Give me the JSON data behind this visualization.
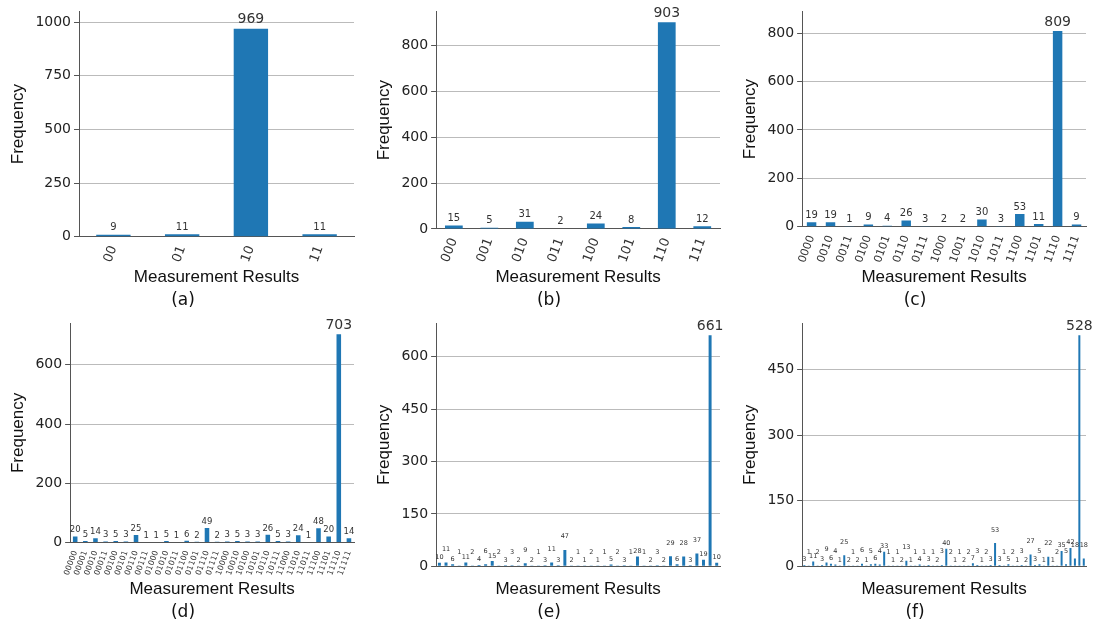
{
  "chart_data": [
    {
      "type": "bar",
      "xlabel": "Measurement Results",
      "ylabel": "Frequency",
      "annotations": [
        "(a)"
      ],
      "categories": [
        "00",
        "01",
        "10",
        "11"
      ],
      "values": [
        9,
        11,
        969,
        11
      ],
      "color": "#1f77b4",
      "ylim": [
        0,
        1050
      ],
      "yticks": [
        0,
        250,
        500,
        750,
        1000
      ],
      "grid": "y",
      "data_labels": true
    },
    {
      "type": "bar",
      "xlabel": "Measurement Results",
      "ylabel": "Frequency",
      "annotations": [
        "(b)"
      ],
      "categories": [
        "000",
        "001",
        "010",
        "011",
        "100",
        "101",
        "110",
        "111"
      ],
      "values": [
        15,
        5,
        31,
        2,
        24,
        8,
        903,
        12
      ],
      "color": "#1f77b4",
      "ylim": [
        0,
        950
      ],
      "yticks": [
        0,
        200,
        400,
        600,
        800
      ],
      "grid": "y",
      "data_labels": true
    },
    {
      "type": "bar",
      "xlabel": "Measurement Results",
      "ylabel": "Frequency",
      "annotations": [
        "(c)"
      ],
      "categories": [
        "0000",
        "0010",
        "0011",
        "0100",
        "0101",
        "0110",
        "0111",
        "1000",
        "1001",
        "1010",
        "1011",
        "1100",
        "1101",
        "1110",
        "1111"
      ],
      "values": [
        19,
        19,
        1,
        9,
        4,
        26,
        3,
        2,
        2,
        30,
        3,
        53,
        11,
        809,
        9
      ],
      "color": "#1f77b4",
      "ylim": [
        0,
        890
      ],
      "yticks": [
        0,
        200,
        400,
        600,
        800
      ],
      "grid": "y",
      "data_labels": true
    },
    {
      "type": "bar",
      "xlabel": "Measurement Results",
      "ylabel": "Frequency",
      "annotations": [
        "(d)"
      ],
      "categories": [
        "00000",
        "00001",
        "00010",
        "00011",
        "00100",
        "00101",
        "00110",
        "00111",
        "01000",
        "01010",
        "01011",
        "01100",
        "01101",
        "01110",
        "01111",
        "10000",
        "10010",
        "10100",
        "10101",
        "10110",
        "10111",
        "11000",
        "11010",
        "11011",
        "11100",
        "11101",
        "11110",
        "11111"
      ],
      "values": [
        20,
        5,
        14,
        3,
        5,
        3,
        25,
        1,
        1,
        5,
        1,
        6,
        2,
        49,
        2,
        3,
        5,
        3,
        3,
        26,
        5,
        3,
        24,
        1,
        48,
        20,
        703,
        14
      ],
      "color": "#1f77b4",
      "ylim": [
        0,
        740
      ],
      "yticks": [
        0,
        200,
        400,
        600
      ],
      "grid": "y",
      "data_labels": true
    },
    {
      "type": "bar",
      "xlabel": "Measurement Results",
      "ylabel": "Frequency",
      "annotations": [
        "(e)"
      ],
      "categories": [
        null,
        null,
        null,
        null,
        null,
        null,
        null,
        null,
        null,
        null,
        null,
        null,
        null,
        null,
        null,
        null,
        null,
        null,
        null,
        null,
        null,
        null,
        null,
        null,
        null,
        null,
        null,
        null,
        null,
        null,
        null,
        null,
        null,
        null,
        null,
        null,
        null,
        null,
        null,
        null,
        null,
        null,
        null
      ],
      "values": [
        10,
        11,
        6,
        1,
        11,
        2,
        4,
        6,
        15,
        2,
        3,
        3,
        2,
        9,
        2,
        1,
        3,
        11,
        3,
        47,
        2,
        1,
        1,
        2,
        1,
        1,
        5,
        2,
        3,
        1,
        28,
        1,
        2,
        3,
        2,
        29,
        6,
        28,
        3,
        37,
        19,
        661,
        10
      ],
      "color": "#1f77b4",
      "ylim": [
        0,
        695
      ],
      "yticks": [
        0,
        150,
        300,
        450,
        600
      ],
      "grid": "y",
      "data_labels": true
    },
    {
      "type": "bar",
      "xlabel": "Measurement Results",
      "ylabel": "Frequency",
      "annotations": [
        "(f)"
      ],
      "categories": [
        null,
        null,
        null,
        null,
        null,
        null,
        null,
        null,
        null,
        null,
        null,
        null,
        null,
        null,
        null,
        null,
        null,
        null,
        null,
        null,
        null,
        null,
        null,
        null,
        null,
        null,
        null,
        null,
        null,
        null,
        null,
        null,
        null,
        null,
        null,
        null,
        null,
        null,
        null,
        null,
        null,
        null,
        null,
        null,
        null,
        null,
        null,
        null,
        null,
        null,
        null,
        null,
        null,
        null,
        null,
        null,
        null,
        null,
        null,
        null,
        null,
        null,
        null,
        null
      ],
      "values": [
        3,
        1,
        11,
        2,
        3,
        9,
        6,
        4,
        1,
        25,
        2,
        1,
        2,
        6,
        1,
        5,
        6,
        4,
        33,
        1,
        1,
        1,
        2,
        13,
        1,
        1,
        4,
        1,
        3,
        1,
        2,
        3,
        40,
        2,
        1,
        1,
        2,
        2,
        7,
        3,
        1,
        2,
        3,
        53,
        3,
        1,
        5,
        2,
        1,
        3,
        2,
        27,
        3,
        5,
        1,
        22,
        1,
        2,
        35,
        5,
        42,
        18,
        528,
        18
      ],
      "color": "#1f77b4",
      "ylim": [
        0,
        555
      ],
      "yticks": [
        0,
        150,
        300,
        450
      ],
      "grid": "y",
      "data_labels": true
    }
  ]
}
